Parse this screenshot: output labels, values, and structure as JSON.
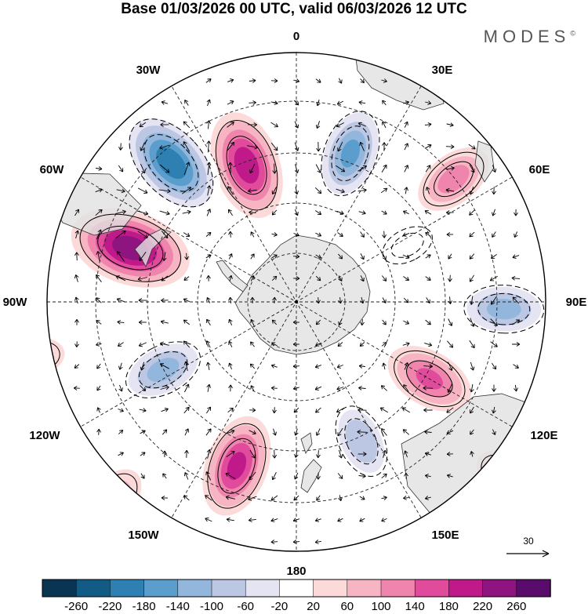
{
  "title": "Base 01/03/2026 00 UTC, valid 06/03/2026 12 UTC",
  "logo": "MODES",
  "logo_mark": "©",
  "projection": "south-polar-stereographic",
  "lon_labels": {
    "l0": "0",
    "l30e": "30E",
    "l60e": "60E",
    "l90e": "90E",
    "l120e": "120E",
    "l150e": "150E",
    "l180": "180",
    "l150w": "150W",
    "l120w": "120W",
    "l90w": "90W",
    "l60w": "60W",
    "l30w": "30W"
  },
  "colorbar": {
    "ticks": [
      "-260",
      "-220",
      "-180",
      "-140",
      "-100",
      "-60",
      "-20",
      "20",
      "60",
      "100",
      "140",
      "180",
      "220",
      "260"
    ],
    "colors": [
      "#0a3552",
      "#125b85",
      "#2f80b2",
      "#5b9dcc",
      "#92b6dc",
      "#bcc7e3",
      "#e4e4f2",
      "#ffffff",
      "#fcdada",
      "#f7b5c4",
      "#ef84ac",
      "#e04b9c",
      "#c01a8a",
      "#8e1580",
      "#5a0c6c"
    ]
  },
  "reference_vector": {
    "value": "30"
  },
  "anomalies": [
    {
      "lon": 340,
      "colat": 35,
      "value": 200
    },
    {
      "lon": 20,
      "colat": 38,
      "value": -180
    },
    {
      "lon": 318,
      "colat": 45,
      "value": -240
    },
    {
      "lon": 288,
      "colat": 42,
      "value": 240
    },
    {
      "lon": 52,
      "colat": 48,
      "value": 110
    },
    {
      "lon": 243,
      "colat": 36,
      "value": -150
    },
    {
      "lon": 200,
      "colat": 42,
      "value": 180
    },
    {
      "lon": 155,
      "colat": 37,
      "value": -130
    },
    {
      "lon": 120,
      "colat": 37,
      "value": 140
    },
    {
      "lon": 92,
      "colat": 50,
      "value": -150
    },
    {
      "lon": 223,
      "colat": 65,
      "value": 80
    },
    {
      "lon": 258,
      "colat": 65,
      "value": 60
    },
    {
      "lon": 130,
      "colat": 66,
      "value": 70
    },
    {
      "lon": 63,
      "colat": 30,
      "value": -50
    }
  ]
}
